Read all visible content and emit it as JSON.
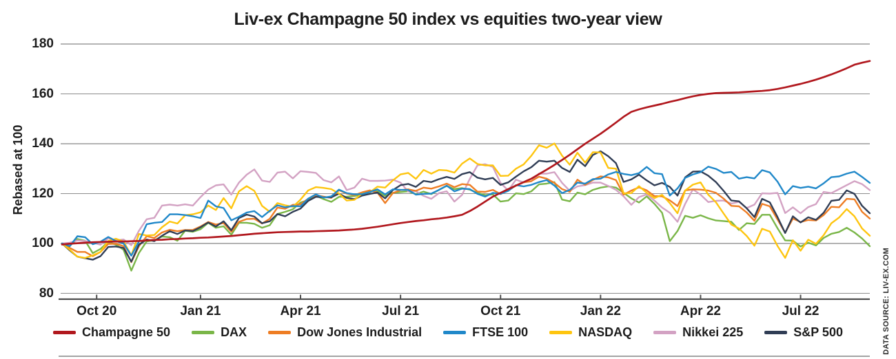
{
  "title": "Liv-ex Champagne 50 index vs equities two-year view",
  "source_note": "DATA SOURCE: LIV-EX.COM",
  "chart_data": {
    "type": "line",
    "title": "Liv-ex Champagne 50 index vs equities two-year view",
    "ylabel": "Rebased at 100",
    "ylim": [
      80,
      180
    ],
    "grid": true,
    "legend_position": "bottom",
    "x_period": "Weekly observations, September 2020 to August 2022",
    "y_ticks": [
      180,
      160,
      140,
      120,
      100,
      80
    ],
    "x_ticks": [
      {
        "label": "Oct 20",
        "index": 4.5
      },
      {
        "label": "Jan 21",
        "index": 18
      },
      {
        "label": "Apr 21",
        "index": 31
      },
      {
        "label": "Jul 21",
        "index": 44
      },
      {
        "label": "Oct 21",
        "index": 57
      },
      {
        "label": "Jan 22",
        "index": 70
      },
      {
        "label": "Apr 22",
        "index": 83
      },
      {
        "label": "Jul 22",
        "index": 96
      }
    ],
    "draw_order": [
      1,
      5,
      2,
      6,
      4,
      3,
      0
    ],
    "style": {
      "grid_major_color": "#b3b3b3",
      "grid_minor_color": "#8c8c8c",
      "axis_color": "#4d4d4d",
      "text_color": "#1c1c1c",
      "background": "#ffffff"
    },
    "series": [
      {
        "name": "Champagne 50",
        "color": "#b1181e",
        "values": [
          99.6,
          99.9,
          100.1,
          100.3,
          100.5,
          100.6,
          100.7,
          100.8,
          100.8,
          100.9,
          101.0,
          101.2,
          101.4,
          101.5,
          101.7,
          101.8,
          102.0,
          102.1,
          102.3,
          102.4,
          102.6,
          102.8,
          103.0,
          103.3,
          103.6,
          103.9,
          104.1,
          104.3,
          104.5,
          104.6,
          104.7,
          104.8,
          104.8,
          104.9,
          105.0,
          105.1,
          105.2,
          105.4,
          105.6,
          105.9,
          106.3,
          106.7,
          107.2,
          107.7,
          108.2,
          108.6,
          109.0,
          109.3,
          109.7,
          110.0,
          110.4,
          110.9,
          111.5,
          113.0,
          114.8,
          116.8,
          118.8,
          120.3,
          121.8,
          123.2,
          124.6,
          126.0,
          127.8,
          129.6,
          131.5,
          133.5,
          135.6,
          137.8,
          140.0,
          142.0,
          144.0,
          146.2,
          148.5,
          150.8,
          152.8,
          153.8,
          154.6,
          155.3,
          156.0,
          156.8,
          157.5,
          158.3,
          159.0,
          159.6,
          160.0,
          160.3,
          160.4,
          160.5,
          160.6,
          160.8,
          161.0,
          161.2,
          161.5,
          162.0,
          162.6,
          163.3,
          164.0,
          164.8,
          165.7,
          166.7,
          167.8,
          169.0,
          170.3,
          171.7,
          172.5,
          173.2
        ]
      },
      {
        "name": "DAX",
        "color": "#7ab648",
        "values": [
          100,
          99.0,
          101.8,
          101.1,
          96.1,
          97.8,
          100.6,
          99.5,
          97.5,
          89.1,
          96.2,
          100.8,
          101.3,
          102.8,
          102.5,
          101.1,
          105.1,
          104.7,
          105.7,
          108.3,
          106.3,
          106.9,
          103.5,
          108.3,
          108.3,
          107.9,
          106.3,
          107.3,
          111.8,
          112.7,
          113.7,
          116.4,
          117.4,
          119.2,
          117.8,
          116.7,
          118.7,
          118.8,
          119.0,
          119.6,
          121.0,
          121.0,
          119.1,
          120.3,
          120.6,
          120.9,
          119.8,
          120.8,
          119.8,
          121.5,
          123.1,
          121.8,
          122.2,
          121.6,
          120.3,
          119.4,
          119.7,
          116.8,
          117.2,
          120.1,
          119.8,
          120.9,
          123.7,
          124.0,
          124.6,
          117.6,
          116.9,
          120.4,
          119.7,
          121.5,
          122.4,
          122.9,
          122.4,
          120.3,
          118.1,
          116.4,
          118.9,
          115.9,
          112.3,
          100.9,
          105.0,
          111.1,
          110.3,
          111.3,
          110.1,
          109.2,
          109.0,
          108.7,
          105.4,
          108.1,
          107.8,
          111.5,
          111.5,
          106.1,
          101.2,
          101.1,
          98.8,
          100.3,
          99.2,
          102.2,
          103.9,
          104.6,
          106.3,
          104.4,
          102.0,
          98.9
        ]
      },
      {
        "name": "Dow Jones Industrial",
        "color": "#ee7d24",
        "values": [
          100,
          98.2,
          96.6,
          96.6,
          94.9,
          96.6,
          99.8,
          99.9,
          98.9,
          92.5,
          98.9,
          102.9,
          102.2,
          104.4,
          105.5,
          104.9,
          105.4,
          105.4,
          106.8,
          108.6,
          107.6,
          108.2,
          104.7,
          108.7,
          109.8,
          109.9,
          108.0,
          109.9,
          114.4,
          113.9,
          115.5,
          115.7,
          118.0,
          119.4,
          118.8,
          118.3,
          121.4,
          120.0,
          119.4,
          120.5,
          121.3,
          120.4,
          116.2,
          120.2,
          121.4,
          121.7,
          121.1,
          122.4,
          122.0,
          122.9,
          124.0,
          122.6,
          123.8,
          123.5,
          120.8,
          120.7,
          121.5,
          119.8,
          121.3,
          123.2,
          124.5,
          125.0,
          126.8,
          126.0,
          124.3,
          121.8,
          120.7,
          125.6,
          123.5,
          125.5,
          126.9,
          126.5,
          125.4,
          119.6,
          121.2,
          122.5,
          121.3,
          119.0,
          118.9,
          117.3,
          115.0,
          121.3,
          121.7,
          121.6,
          121.2,
          120.3,
          118.0,
          115.1,
          114.9,
          112.4,
          109.1,
          115.9,
          114.9,
          109.6,
          104.3,
          110.0,
          108.6,
          109.4,
          109.2,
          111.4,
          114.7,
          114.5,
          117.9,
          117.7,
          112.7,
          110.0
        ]
      },
      {
        "name": "FTSE 100",
        "color": "#2088c9",
        "values": [
          100,
          98.9,
          102.9,
          102.5,
          99.7,
          100.7,
          102.6,
          101.0,
          100.0,
          95.1,
          100.8,
          107.7,
          108.3,
          108.6,
          111.7,
          111.7,
          111.4,
          110.9,
          110.2,
          117.2,
          114.9,
          114.2,
          109.3,
          110.7,
          112.4,
          113.0,
          110.6,
          113.1,
          115.3,
          114.5,
          115.0,
          114.9,
          118.0,
          119.7,
          118.4,
          118.9,
          121.6,
          120.2,
          119.7,
          119.8,
          120.6,
          121.7,
          119.7,
          121.7,
          121.5,
          121.5,
          119.6,
          119.9,
          120.0,
          121.5,
          123.2,
          120.9,
          122.0,
          121.8,
          119.9,
          118.8,
          120.3,
          119.9,
          121.1,
          123.4,
          122.9,
          123.5,
          124.6,
          125.4,
          123.2,
          120.2,
          121.5,
          124.4,
          124.0,
          125.8,
          126.0,
          127.7,
          128.7,
          127.9,
          127.4,
          128.2,
          130.7,
          128.2,
          127.8,
          119.2,
          122.1,
          126.3,
          127.7,
          128.6,
          130.8,
          129.9,
          128.3,
          128.7,
          126.0,
          126.6,
          126.1,
          129.4,
          128.5,
          124.8,
          119.7,
          123.0,
          122.3,
          122.8,
          122.1,
          124.1,
          126.6,
          126.9,
          128.0,
          128.8,
          126.7,
          124.3
        ]
      },
      {
        "name": "NASDAQ",
        "color": "#fec50f",
        "values": [
          100,
          97.5,
          94.7,
          94.2,
          95.2,
          96.6,
          101.0,
          101.9,
          100.8,
          95.2,
          103.8,
          103.2,
          103.4,
          106.5,
          108.8,
          108.0,
          111.3,
          111.7,
          112.5,
          115.2,
          113.4,
          118.2,
          114.1,
          120.9,
          123.0,
          121.1,
          115.1,
          112.7,
          116.2,
          115.3,
          114.7,
          117.6,
          121.3,
          122.6,
          122.3,
          121.8,
          120.0,
          117.2,
          117.5,
          120.0,
          120.5,
          122.8,
          122.4,
          125.3,
          127.7,
          128.3,
          125.9,
          129.5,
          128.0,
          129.5,
          129.3,
          128.4,
          132.0,
          134.1,
          131.9,
          131.3,
          131.3,
          127.1,
          127.2,
          130.0,
          131.7,
          135.2,
          139.4,
          138.4,
          140.1,
          135.2,
          131.6,
          136.4,
          132.4,
          136.6,
          136.5,
          130.3,
          130.0,
          120.1,
          120.2,
          123.0,
          120.3,
          118.2,
          119.5,
          116.2,
          112.1,
          121.2,
          123.6,
          124.5,
          119.6,
          116.5,
          112.0,
          107.6,
          106.0,
          103.0,
          99.1,
          105.9,
          104.8,
          99.0,
          94.2,
          101.3,
          97.1,
          101.5,
          99.9,
          103.3,
          108.1,
          110.4,
          113.8,
          110.9,
          106.0,
          103.1
        ]
      },
      {
        "name": "Nikkei 225",
        "color": "#d3a2c3",
        "values": [
          100,
          100.3,
          101.2,
          101.0,
          100.3,
          99.5,
          102.1,
          101.2,
          101.6,
          99.3,
          105.1,
          109.7,
          110.3,
          115.2,
          115.6,
          115.2,
          115.7,
          115.2,
          118.6,
          121.6,
          123.3,
          123.7,
          119.6,
          124.4,
          127.6,
          129.7,
          125.2,
          124.7,
          128.4,
          128.8,
          126.1,
          129.0,
          128.7,
          128.3,
          125.4,
          124.5,
          126.9,
          121.4,
          122.4,
          126.0,
          125.1,
          125.1,
          125.2,
          125.6,
          124.4,
          120.8,
          121.0,
          119.1,
          117.9,
          120.2,
          120.9,
          116.8,
          119.5,
          125.9,
          131.3,
          131.8,
          130.7,
          124.3,
          121.2,
          125.6,
          124.5,
          124.9,
          128.0,
          128.0,
          128.6,
          124.3,
          121.1,
          122.9,
          123.4,
          124.4,
          124.4,
          123.1,
          121.5,
          118.9,
          115.5,
          118.6,
          119.7,
          117.2,
          114.4,
          112.3,
          108.7,
          115.9,
          121.7,
          119.6,
          116.6,
          117.1,
          117.2,
          116.0,
          116.7,
          114.2,
          115.6,
          120.1,
          120.0,
          120.3,
          112.2,
          114.5,
          112.1,
          114.6,
          115.8,
          120.7,
          120.2,
          121.8,
          123.4,
          125.0,
          123.8,
          121.4
        ]
      },
      {
        "name": "S&P 500",
        "color": "#303d55",
        "values": [
          100,
          97.2,
          94.7,
          94.1,
          93.5,
          94.9,
          98.6,
          98.8,
          98.2,
          92.7,
          99.5,
          101.6,
          100.9,
          103.1,
          104.9,
          103.8,
          105.2,
          105.0,
          106.5,
          108.4,
          106.8,
          108.9,
          105.3,
          110.2,
          111.6,
          110.8,
          108.1,
          108.9,
          111.8,
          110.9,
          112.7,
          114.0,
          117.1,
          118.7,
          118.5,
          118.5,
          120.0,
          118.3,
          117.8,
          119.2,
          119.9,
          120.4,
          118.1,
          121.4,
          123.4,
          123.9,
          122.7,
          125.1,
          124.6,
          125.8,
          126.7,
          125.9,
          127.8,
          128.6,
          126.4,
          125.7,
          126.3,
          123.5,
          124.5,
          126.8,
          128.9,
          130.6,
          133.2,
          132.8,
          133.2,
          130.3,
          128.7,
          133.6,
          131.0,
          135.5,
          137.0,
          135.0,
          132.2,
          124.7,
          125.7,
          127.6,
          125.3,
          123.3,
          124.3,
          122.7,
          119.2,
          126.5,
          128.8,
          128.9,
          127.2,
          124.6,
          121.1,
          117.2,
          116.9,
          114.1,
          110.6,
          117.9,
          116.5,
          110.6,
          104.2,
          110.9,
          108.4,
          110.5,
          109.5,
          112.3,
          117.1,
          117.5,
          121.3,
          119.9,
          115.1,
          112.1
        ]
      }
    ]
  }
}
